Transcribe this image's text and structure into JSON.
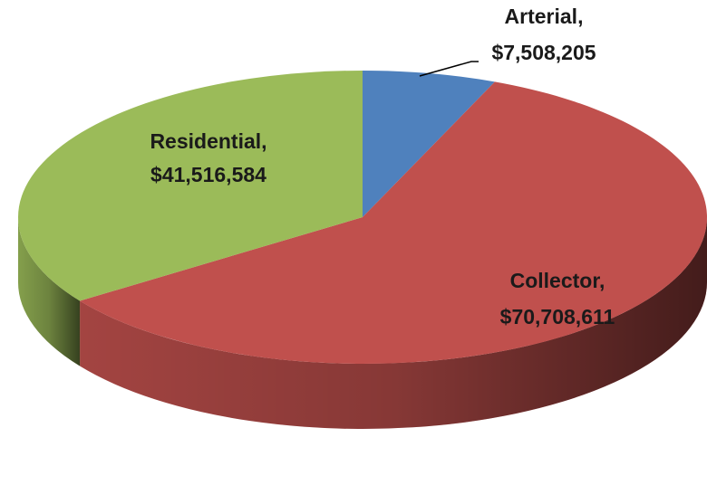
{
  "chart_data": {
    "type": "pie",
    "categories": [
      "Arterial,",
      "Collector,",
      "Residential,"
    ],
    "values": [
      7508205,
      70708611,
      41516584
    ],
    "value_labels": [
      "$7,508,205",
      "$70,708,611",
      "$41,516,584"
    ],
    "colors": [
      "#4f81bd",
      "#c0504d",
      "#9bbb59"
    ]
  }
}
